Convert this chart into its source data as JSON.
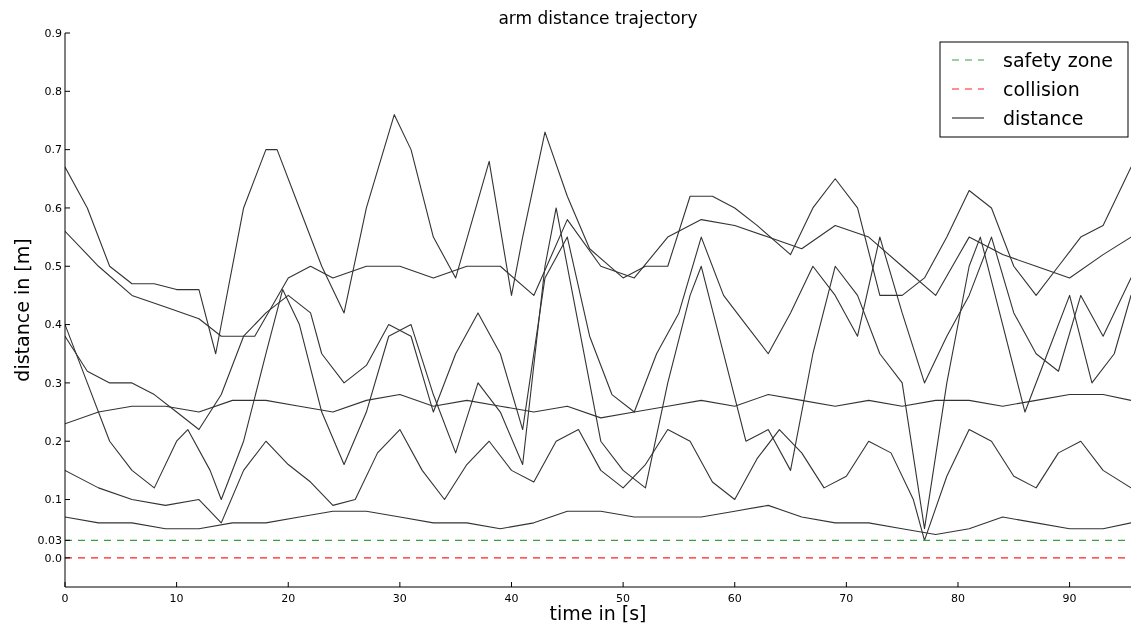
{
  "chart_data": {
    "type": "line",
    "title": "arm distance trajectory",
    "xlabel": "time in [s]",
    "ylabel": "distance in [m]",
    "xlim": [
      0,
      95.5
    ],
    "xticks": [
      0,
      10,
      20,
      30,
      40,
      50,
      60,
      70,
      80,
      90
    ],
    "ylim": [
      -0.05,
      0.9
    ],
    "yticks": [
      {
        "value": 0,
        "label": "0.0"
      },
      0.03,
      0.1,
      0.2,
      0.3,
      0.4,
      0.5,
      0.6,
      0.7,
      0.8,
      0.9
    ],
    "grid": false,
    "legend": "top right",
    "marker": "none",
    "line_style": "solid",
    "ref_lines": [
      {
        "axis": "y",
        "value": 0.03,
        "label": "safety zone",
        "color": "#3ca03c",
        "line_style": "dashed"
      },
      {
        "axis": "y",
        "value": 0,
        "label": "collision",
        "color": "#ff2020",
        "line_style": "dashed"
      }
    ],
    "series": [
      {
        "name": "distance",
        "color": "#333333",
        "x": [
          0,
          2,
          4,
          6,
          8,
          10,
          12,
          13.5,
          16,
          18,
          19,
          21,
          23,
          25,
          27,
          29.5,
          31,
          33,
          35,
          38,
          40,
          41,
          43,
          45,
          47,
          50,
          52,
          54,
          56,
          58,
          60,
          62,
          65,
          67,
          69,
          71,
          73,
          75,
          77,
          79,
          81,
          83,
          85,
          87,
          89,
          91,
          93,
          95.5
        ],
        "values": [
          0.67,
          0.6,
          0.5,
          0.47,
          0.47,
          0.46,
          0.46,
          0.35,
          0.6,
          0.7,
          0.7,
          0.6,
          0.5,
          0.42,
          0.6,
          0.76,
          0.7,
          0.55,
          0.48,
          0.68,
          0.45,
          0.55,
          0.73,
          0.62,
          0.53,
          0.48,
          0.5,
          0.5,
          0.62,
          0.62,
          0.6,
          0.57,
          0.52,
          0.6,
          0.65,
          0.6,
          0.45,
          0.45,
          0.48,
          0.55,
          0.63,
          0.6,
          0.5,
          0.45,
          0.5,
          0.55,
          0.57,
          0.67
        ]
      },
      {
        "color": "#333333",
        "x": [
          0,
          3,
          6,
          9,
          12,
          14,
          17,
          20,
          22,
          24,
          27,
          30,
          33,
          36,
          39,
          42,
          45,
          48,
          51,
          54,
          57,
          60,
          63,
          66,
          69,
          72,
          75,
          78,
          81,
          84,
          87,
          90,
          93,
          95.5
        ],
        "values": [
          0.56,
          0.5,
          0.45,
          0.43,
          0.41,
          0.38,
          0.38,
          0.48,
          0.5,
          0.48,
          0.5,
          0.5,
          0.48,
          0.5,
          0.5,
          0.45,
          0.58,
          0.5,
          0.48,
          0.55,
          0.58,
          0.57,
          0.55,
          0.53,
          0.57,
          0.55,
          0.5,
          0.45,
          0.55,
          0.52,
          0.5,
          0.48,
          0.52,
          0.55
        ]
      },
      {
        "color": "#333333",
        "x": [
          0,
          2,
          4,
          6,
          8,
          10,
          11,
          13,
          14,
          16,
          18,
          19.5,
          21,
          23,
          25,
          27,
          29,
          31,
          33,
          35,
          37,
          39,
          41,
          43,
          44,
          46,
          48,
          50,
          52,
          54,
          56,
          57,
          59,
          61,
          63,
          65,
          67,
          69,
          71,
          73,
          75,
          77,
          79,
          81,
          82,
          84,
          86,
          88,
          90,
          92,
          94,
          95.5
        ],
        "values": [
          0.4,
          0.3,
          0.2,
          0.15,
          0.12,
          0.2,
          0.22,
          0.15,
          0.1,
          0.2,
          0.35,
          0.46,
          0.4,
          0.25,
          0.16,
          0.25,
          0.38,
          0.4,
          0.28,
          0.18,
          0.3,
          0.25,
          0.16,
          0.5,
          0.6,
          0.4,
          0.2,
          0.15,
          0.12,
          0.3,
          0.45,
          0.5,
          0.35,
          0.2,
          0.22,
          0.15,
          0.35,
          0.5,
          0.45,
          0.35,
          0.3,
          0.05,
          0.3,
          0.5,
          0.55,
          0.4,
          0.25,
          0.35,
          0.45,
          0.3,
          0.35,
          0.45
        ]
      },
      {
        "color": "#333333",
        "x": [
          0,
          3,
          6,
          9,
          12,
          15,
          18,
          21,
          24,
          27,
          30,
          33,
          36,
          39,
          42,
          45,
          48,
          51,
          54,
          57,
          60,
          63,
          66,
          69,
          72,
          75,
          78,
          81,
          84,
          87,
          90,
          93,
          95.5
        ],
        "values": [
          0.07,
          0.06,
          0.06,
          0.05,
          0.05,
          0.06,
          0.06,
          0.07,
          0.08,
          0.08,
          0.07,
          0.06,
          0.06,
          0.05,
          0.06,
          0.08,
          0.08,
          0.07,
          0.07,
          0.07,
          0.08,
          0.09,
          0.07,
          0.06,
          0.06,
          0.05,
          0.04,
          0.05,
          0.07,
          0.06,
          0.05,
          0.05,
          0.06
        ]
      },
      {
        "color": "#333333",
        "x": [
          0,
          3,
          6,
          9,
          12,
          15,
          18,
          21,
          24,
          27,
          30,
          33,
          36,
          39,
          42,
          45,
          48,
          51,
          54,
          57,
          60,
          63,
          66,
          69,
          72,
          75,
          78,
          81,
          84,
          87,
          90,
          93,
          95.5
        ],
        "values": [
          0.23,
          0.25,
          0.26,
          0.26,
          0.25,
          0.27,
          0.27,
          0.26,
          0.25,
          0.27,
          0.28,
          0.26,
          0.27,
          0.26,
          0.25,
          0.26,
          0.24,
          0.25,
          0.26,
          0.27,
          0.26,
          0.28,
          0.27,
          0.26,
          0.27,
          0.26,
          0.27,
          0.27,
          0.26,
          0.27,
          0.28,
          0.28,
          0.27
        ]
      },
      {
        "color": "#333333",
        "x": [
          0,
          3,
          6,
          9,
          12,
          14,
          16,
          18,
          20,
          22,
          24,
          26,
          28,
          30,
          32,
          34,
          36,
          38,
          40,
          42,
          44,
          46,
          48,
          50,
          52,
          54,
          56,
          58,
          60,
          62,
          64,
          66,
          68,
          70,
          72,
          74,
          76,
          77,
          79,
          81,
          83,
          85,
          87,
          89,
          91,
          93,
          95.5
        ],
        "values": [
          0.15,
          0.12,
          0.1,
          0.09,
          0.1,
          0.06,
          0.15,
          0.2,
          0.16,
          0.13,
          0.09,
          0.1,
          0.18,
          0.22,
          0.15,
          0.1,
          0.16,
          0.2,
          0.15,
          0.13,
          0.2,
          0.22,
          0.15,
          0.12,
          0.16,
          0.22,
          0.2,
          0.13,
          0.1,
          0.17,
          0.22,
          0.18,
          0.12,
          0.14,
          0.2,
          0.18,
          0.1,
          0.03,
          0.14,
          0.22,
          0.2,
          0.14,
          0.12,
          0.18,
          0.2,
          0.15,
          0.12
        ]
      },
      {
        "color": "#333333",
        "x": [
          0,
          2,
          4,
          6,
          8,
          10,
          12,
          14,
          16,
          18,
          20,
          22,
          23,
          25,
          27,
          29,
          31,
          33,
          35,
          37,
          39,
          41,
          43,
          45,
          47,
          49,
          51,
          53,
          55,
          57,
          59,
          61,
          63,
          65,
          67,
          69,
          71,
          73,
          75,
          77,
          79,
          81,
          83,
          85,
          87,
          89,
          91,
          93,
          95.5
        ],
        "values": [
          0.38,
          0.32,
          0.3,
          0.3,
          0.28,
          0.25,
          0.22,
          0.28,
          0.38,
          0.42,
          0.45,
          0.42,
          0.35,
          0.3,
          0.33,
          0.4,
          0.38,
          0.25,
          0.35,
          0.42,
          0.35,
          0.22,
          0.48,
          0.55,
          0.38,
          0.28,
          0.25,
          0.35,
          0.42,
          0.55,
          0.45,
          0.4,
          0.35,
          0.42,
          0.5,
          0.45,
          0.38,
          0.55,
          0.42,
          0.3,
          0.38,
          0.45,
          0.55,
          0.42,
          0.35,
          0.32,
          0.45,
          0.38,
          0.48
        ]
      }
    ]
  }
}
